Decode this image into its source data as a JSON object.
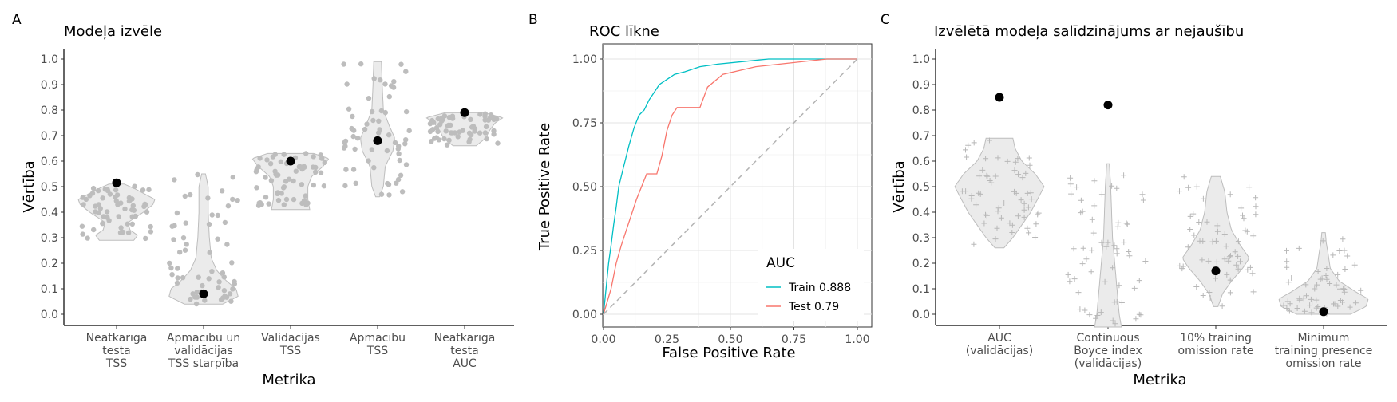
{
  "panels": {
    "A": {
      "label": "A",
      "title": "Modeļa izvēle",
      "xlabel": "Metrika",
      "ylabel": "Vērtība",
      "yticks": [
        "0.0",
        "0.1",
        "0.2",
        "0.3",
        "0.4",
        "0.5",
        "0.6",
        "0.7",
        "0.8",
        "0.9",
        "1.0"
      ],
      "categories": [
        [
          "Neatkarīgā",
          "testa",
          "TSS"
        ],
        [
          "Apmācību un",
          "validācijas",
          "TSS starpība"
        ],
        [
          "Validācijas",
          "TSS"
        ],
        [
          "Apmācību",
          "TSS"
        ],
        [
          "Neatkarīgā",
          "testa",
          "AUC"
        ]
      ]
    },
    "B": {
      "label": "B",
      "title": "ROC līkne",
      "xlabel": "False Positive Rate",
      "ylabel": "True Positive Rate",
      "xticks": [
        "0.00",
        "0.25",
        "0.50",
        "0.75",
        "1.00"
      ],
      "yticks": [
        "0.00",
        "0.25",
        "0.50",
        "0.75",
        "1.00"
      ],
      "legend_title": "AUC",
      "legend": [
        "Train 0.888",
        "Test 0.79"
      ]
    },
    "C": {
      "label": "C",
      "title": "Izvēlētā modeļa salīdzinājums ar nejaušību",
      "xlabel": "Metrika",
      "ylabel": "Vērtība",
      "yticks": [
        "0.0",
        "0.1",
        "0.2",
        "0.3",
        "0.4",
        "0.5",
        "0.6",
        "0.7",
        "0.8",
        "0.9",
        "1.0"
      ],
      "categories": [
        [
          "AUC",
          "(validācijas)"
        ],
        [
          "Continuous",
          "Boyce index",
          "(validācijas)"
        ],
        [
          "10% training",
          "omission rate"
        ],
        [
          "Minimum",
          "training presence",
          "omission rate"
        ]
      ]
    }
  },
  "chart_data": [
    {
      "type": "violin",
      "panel": "A",
      "title": "Modeļa izvēle",
      "xlabel": "Metrika",
      "ylabel": "Vērtība",
      "ylim": [
        0,
        1
      ],
      "grid": false,
      "violins": [
        {
          "category": "Neatkarīgā testa TSS",
          "min": 0.29,
          "max": 0.51,
          "selected": 0.515,
          "profile": [
            [
              0.29,
              0.45
            ],
            [
              0.31,
              0.55
            ],
            [
              0.33,
              0.35
            ],
            [
              0.36,
              0.3
            ],
            [
              0.4,
              0.7
            ],
            [
              0.43,
              0.95
            ],
            [
              0.45,
              1.0
            ],
            [
              0.47,
              0.75
            ],
            [
              0.49,
              0.5
            ],
            [
              0.51,
              0.2
            ]
          ]
        },
        {
          "category": "Apmācību un validācijas TSS starpība",
          "min": 0.04,
          "max": 0.55,
          "selected": 0.08,
          "profile": [
            [
              0.04,
              0.5
            ],
            [
              0.07,
              0.9
            ],
            [
              0.1,
              0.85
            ],
            [
              0.13,
              0.6
            ],
            [
              0.17,
              0.35
            ],
            [
              0.22,
              0.2
            ],
            [
              0.3,
              0.15
            ],
            [
              0.4,
              0.12
            ],
            [
              0.5,
              0.12
            ],
            [
              0.55,
              0.05
            ]
          ]
        },
        {
          "category": "Validācijas TSS",
          "min": 0.41,
          "max": 0.63,
          "selected": 0.6,
          "profile": [
            [
              0.41,
              0.5
            ],
            [
              0.45,
              0.45
            ],
            [
              0.5,
              0.45
            ],
            [
              0.54,
              0.55
            ],
            [
              0.58,
              0.85
            ],
            [
              0.61,
              1.0
            ],
            [
              0.63,
              0.6
            ]
          ]
        },
        {
          "category": "Apmācību TSS",
          "min": 0.46,
          "max": 0.99,
          "selected": 0.68,
          "profile": [
            [
              0.46,
              0.05
            ],
            [
              0.5,
              0.15
            ],
            [
              0.58,
              0.2
            ],
            [
              0.64,
              0.4
            ],
            [
              0.69,
              0.45
            ],
            [
              0.74,
              0.3
            ],
            [
              0.8,
              0.15
            ],
            [
              0.9,
              0.12
            ],
            [
              0.99,
              0.1
            ]
          ]
        },
        {
          "category": "Neatkarīgā testa AUC",
          "min": 0.66,
          "max": 0.79,
          "selected": 0.79,
          "profile": [
            [
              0.66,
              0.3
            ],
            [
              0.69,
              0.55
            ],
            [
              0.72,
              0.65
            ],
            [
              0.75,
              0.8
            ],
            [
              0.77,
              1.0
            ],
            [
              0.79,
              0.5
            ]
          ]
        }
      ],
      "point_count_per_category": 60
    },
    {
      "type": "line",
      "panel": "B",
      "title": "ROC līkne",
      "xlabel": "False Positive Rate",
      "ylabel": "True Positive Rate",
      "xlim": [
        0,
        1
      ],
      "ylim": [
        0,
        1
      ],
      "grid": true,
      "legend_placement": "bottom-right",
      "legend_title": "AUC",
      "series": [
        {
          "name": "Train 0.888",
          "color": "#00bfc4",
          "points": [
            [
              0,
              0
            ],
            [
              0.01,
              0.1
            ],
            [
              0.02,
              0.2
            ],
            [
              0.03,
              0.27
            ],
            [
              0.04,
              0.35
            ],
            [
              0.05,
              0.42
            ],
            [
              0.06,
              0.5
            ],
            [
              0.08,
              0.58
            ],
            [
              0.1,
              0.66
            ],
            [
              0.12,
              0.73
            ],
            [
              0.14,
              0.78
            ],
            [
              0.16,
              0.8
            ],
            [
              0.18,
              0.84
            ],
            [
              0.2,
              0.87
            ],
            [
              0.22,
              0.9
            ],
            [
              0.25,
              0.92
            ],
            [
              0.28,
              0.94
            ],
            [
              0.32,
              0.95
            ],
            [
              0.38,
              0.97
            ],
            [
              0.45,
              0.98
            ],
            [
              0.55,
              0.99
            ],
            [
              0.65,
              1.0
            ],
            [
              1,
              1
            ]
          ]
        },
        {
          "name": "Test 0.79",
          "color": "#f8766d",
          "points": [
            [
              0,
              0
            ],
            [
              0.03,
              0.1
            ],
            [
              0.05,
              0.2
            ],
            [
              0.07,
              0.27
            ],
            [
              0.09,
              0.33
            ],
            [
              0.11,
              0.39
            ],
            [
              0.13,
              0.45
            ],
            [
              0.15,
              0.5
            ],
            [
              0.17,
              0.55
            ],
            [
              0.21,
              0.55
            ],
            [
              0.23,
              0.62
            ],
            [
              0.25,
              0.72
            ],
            [
              0.27,
              0.78
            ],
            [
              0.29,
              0.81
            ],
            [
              0.38,
              0.81
            ],
            [
              0.41,
              0.89
            ],
            [
              0.47,
              0.94
            ],
            [
              0.6,
              0.97
            ],
            [
              0.88,
              1.0
            ],
            [
              1,
              1
            ]
          ]
        },
        {
          "name": "",
          "color": "#b3b3b3",
          "dashed": true,
          "points": [
            [
              0,
              0
            ],
            [
              1,
              1
            ]
          ]
        }
      ]
    },
    {
      "type": "violin",
      "panel": "C",
      "title": "Izvēlētā modeļa salīdzinājums ar nejaušību",
      "xlabel": "Metrika",
      "ylabel": "Vērtība",
      "ylim": [
        0,
        1
      ],
      "grid": false,
      "violins": [
        {
          "category": "AUC (validācijas)",
          "min": 0.26,
          "max": 0.69,
          "selected": 0.85,
          "profile": [
            [
              0.26,
              0.1
            ],
            [
              0.3,
              0.3
            ],
            [
              0.35,
              0.5
            ],
            [
              0.4,
              0.7
            ],
            [
              0.45,
              0.85
            ],
            [
              0.5,
              1.0
            ],
            [
              0.55,
              0.8
            ],
            [
              0.6,
              0.5
            ],
            [
              0.65,
              0.35
            ],
            [
              0.69,
              0.3
            ]
          ]
        },
        {
          "category": "Continuous Boyce index (validācijas)",
          "min": -0.05,
          "max": 0.59,
          "selected": 0.82,
          "profile": [
            [
              -0.05,
              0.3
            ],
            [
              0.0,
              0.25
            ],
            [
              0.1,
              0.2
            ],
            [
              0.2,
              0.15
            ],
            [
              0.3,
              0.1
            ],
            [
              0.4,
              0.08
            ],
            [
              0.5,
              0.06
            ],
            [
              0.59,
              0.03
            ]
          ]
        },
        {
          "category": "10% training omission rate",
          "min": 0.03,
          "max": 0.54,
          "selected": 0.17,
          "profile": [
            [
              0.03,
              0.05
            ],
            [
              0.08,
              0.15
            ],
            [
              0.13,
              0.35
            ],
            [
              0.18,
              0.6
            ],
            [
              0.22,
              0.75
            ],
            [
              0.27,
              0.55
            ],
            [
              0.33,
              0.35
            ],
            [
              0.4,
              0.25
            ],
            [
              0.48,
              0.2
            ],
            [
              0.54,
              0.1
            ]
          ]
        },
        {
          "category": "Minimum training presence omission rate",
          "min": 0.0,
          "max": 0.32,
          "selected": 0.01,
          "profile": [
            [
              0.0,
              0.6
            ],
            [
              0.03,
              0.95
            ],
            [
              0.06,
              1.0
            ],
            [
              0.09,
              0.7
            ],
            [
              0.13,
              0.35
            ],
            [
              0.18,
              0.15
            ],
            [
              0.24,
              0.1
            ],
            [
              0.28,
              0.06
            ],
            [
              0.32,
              0.04
            ]
          ]
        }
      ],
      "point_count_per_category": 60
    }
  ]
}
